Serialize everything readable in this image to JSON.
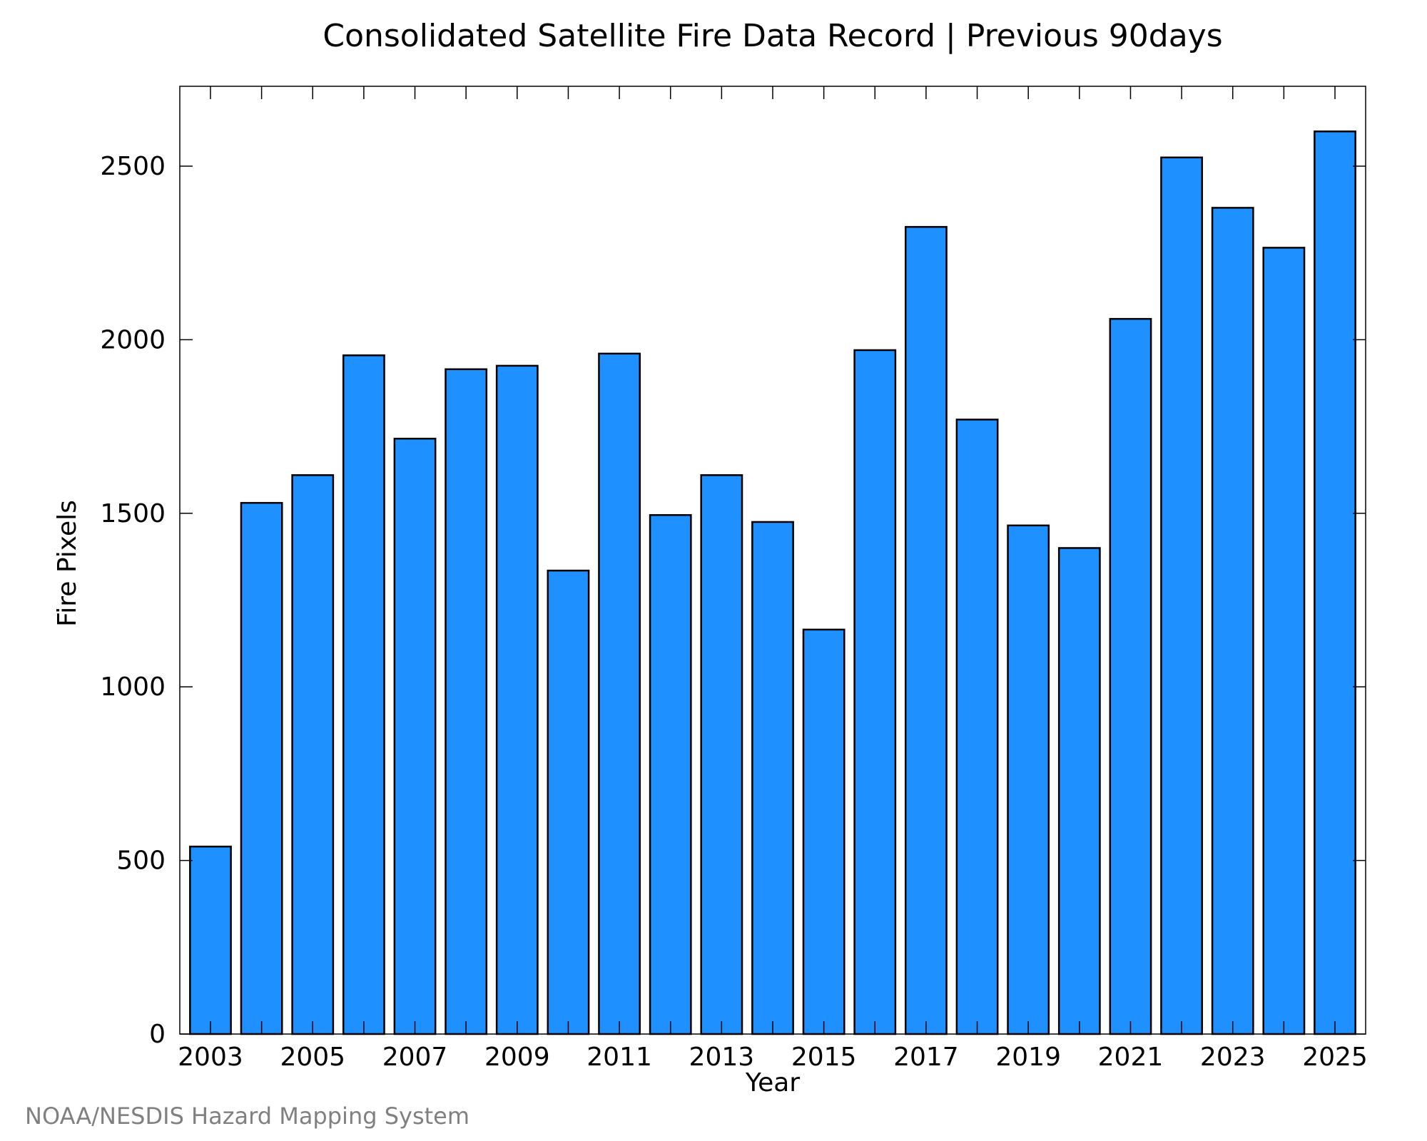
{
  "chart_data": {
    "type": "bar",
    "title": "Consolidated Satellite Fire Data Record | Previous 90days",
    "xlabel": "Year",
    "ylabel": "Fire Pixels",
    "source_note": "NOAA/NESDIS Hazard Mapping System",
    "categories": [
      "2003",
      "2004",
      "2005",
      "2006",
      "2007",
      "2008",
      "2009",
      "2010",
      "2011",
      "2012",
      "2013",
      "2014",
      "2015",
      "2016",
      "2017",
      "2018",
      "2019",
      "2020",
      "2021",
      "2022",
      "2023",
      "2024",
      "2025"
    ],
    "values": [
      540,
      1530,
      1610,
      1955,
      1715,
      1915,
      1925,
      1335,
      1960,
      1495,
      1610,
      1475,
      1165,
      1970,
      2325,
      1770,
      1465,
      1400,
      2060,
      2525,
      2380,
      2265,
      2600
    ],
    "ylim": [
      0,
      2730
    ],
    "yticks": [
      0,
      500,
      1000,
      1500,
      2000,
      2500
    ],
    "xtick_labels": [
      "2003",
      "2005",
      "2007",
      "2009",
      "2011",
      "2013",
      "2015",
      "2017",
      "2019",
      "2021",
      "2023",
      "2025"
    ],
    "grid": false,
    "colors": {
      "bar_fill": "#1e90ff",
      "bar_edge": "#000000",
      "note_text": "#808080"
    }
  }
}
